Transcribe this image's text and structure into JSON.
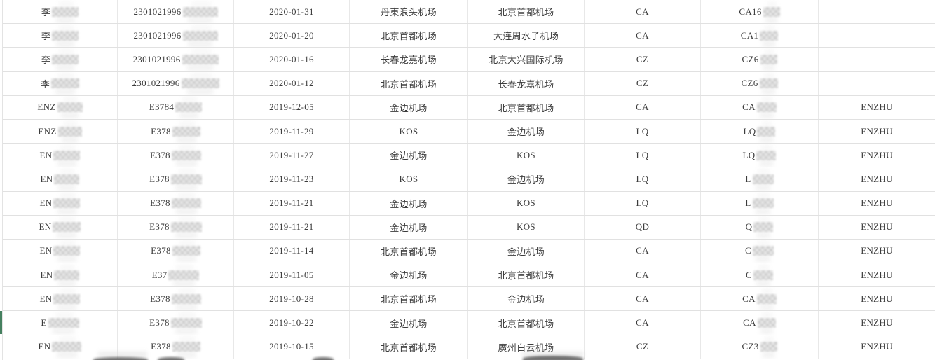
{
  "view": {
    "description": "Flight records spreadsheet (no header row visible)",
    "colors": {
      "grid_line": "#e1e1e1",
      "text": "#3c3c3c",
      "row_highlight_green": "#45805f",
      "redaction_gray": "#d0d0d0"
    }
  },
  "table": {
    "columns": [
      "passenger-name",
      "id-number",
      "flight-date",
      "departure-airport",
      "arrival-airport",
      "airline-code",
      "flight-number",
      "pinyin-name"
    ],
    "rows": [
      {
        "cells": [
          {
            "t": "李",
            "b": 38
          },
          {
            "t": "2301021996",
            "b": 50
          },
          {
            "t": "2020-01-31",
            "b": 0
          },
          {
            "t": "丹東浪头机场",
            "b": 0
          },
          {
            "t": "北京首都机场",
            "b": 0
          },
          {
            "t": "CA",
            "b": 0
          },
          {
            "t": "CA16",
            "b": 24
          },
          {
            "t": "",
            "b": 0
          }
        ]
      },
      {
        "cells": [
          {
            "t": "李",
            "b": 38
          },
          {
            "t": "2301021996",
            "b": 50
          },
          {
            "t": "2020-01-20",
            "b": 0
          },
          {
            "t": "北京首都机场",
            "b": 0
          },
          {
            "t": "大连周水子机场",
            "b": 0
          },
          {
            "t": "CA",
            "b": 0
          },
          {
            "t": "CA1",
            "b": 26
          },
          {
            "t": "",
            "b": 0
          }
        ]
      },
      {
        "cells": [
          {
            "t": "李",
            "b": 38
          },
          {
            "t": "2301021996",
            "b": 52
          },
          {
            "t": "2020-01-16",
            "b": 0
          },
          {
            "t": "长春龙嘉机场",
            "b": 0
          },
          {
            "t": "北京大兴国际机场",
            "b": 0
          },
          {
            "t": "CZ",
            "b": 0
          },
          {
            "t": "CZ6",
            "b": 24
          },
          {
            "t": "",
            "b": 0
          }
        ]
      },
      {
        "cells": [
          {
            "t": "李",
            "b": 40
          },
          {
            "t": "2301021996",
            "b": 54
          },
          {
            "t": "2020-01-12",
            "b": 0
          },
          {
            "t": "北京首都机场",
            "b": 0
          },
          {
            "t": "长春龙嘉机场",
            "b": 0
          },
          {
            "t": "CZ",
            "b": 0
          },
          {
            "t": "CZ6",
            "b": 26
          },
          {
            "t": "",
            "b": 0
          }
        ]
      },
      {
        "cells": [
          {
            "t": "ENZ",
            "b": 36
          },
          {
            "t": "E3784",
            "b": 38
          },
          {
            "t": "2019-12-05",
            "b": 0
          },
          {
            "t": "金边机场",
            "b": 0
          },
          {
            "t": "北京首都机场",
            "b": 0
          },
          {
            "t": "CA",
            "b": 0
          },
          {
            "t": "CA",
            "b": 28
          },
          {
            "t": "ENZHU",
            "b": 0
          }
        ]
      },
      {
        "cells": [
          {
            "t": "ENZ",
            "b": 34
          },
          {
            "t": "E378",
            "b": 40
          },
          {
            "t": "2019-11-29",
            "b": 0
          },
          {
            "t": "KOS",
            "b": 0
          },
          {
            "t": "金边机场",
            "b": 0
          },
          {
            "t": "LQ",
            "b": 0
          },
          {
            "t": "LQ",
            "b": 26
          },
          {
            "t": "ENZHU",
            "b": 0
          }
        ]
      },
      {
        "cells": [
          {
            "t": "EN",
            "b": 38
          },
          {
            "t": "E378",
            "b": 42
          },
          {
            "t": "2019-11-27",
            "b": 0
          },
          {
            "t": "金边机场",
            "b": 0
          },
          {
            "t": "KOS",
            "b": 0
          },
          {
            "t": "LQ",
            "b": 0
          },
          {
            "t": "LQ",
            "b": 28
          },
          {
            "t": "ENZHU",
            "b": 0
          }
        ]
      },
      {
        "cells": [
          {
            "t": "EN",
            "b": 36
          },
          {
            "t": "E378",
            "b": 44
          },
          {
            "t": "2019-11-23",
            "b": 0
          },
          {
            "t": "KOS",
            "b": 0
          },
          {
            "t": "金边机场",
            "b": 0
          },
          {
            "t": "LQ",
            "b": 0
          },
          {
            "t": "L",
            "b": 30
          },
          {
            "t": "ENZHU",
            "b": 0
          }
        ]
      },
      {
        "cells": [
          {
            "t": "EN",
            "b": 38
          },
          {
            "t": "E378",
            "b": 42
          },
          {
            "t": "2019-11-21",
            "b": 0
          },
          {
            "t": "金边机场",
            "b": 0
          },
          {
            "t": "KOS",
            "b": 0
          },
          {
            "t": "LQ",
            "b": 0
          },
          {
            "t": "L",
            "b": 30
          },
          {
            "t": "ENZHU",
            "b": 0
          }
        ]
      },
      {
        "cells": [
          {
            "t": "EN",
            "b": 40
          },
          {
            "t": "E378",
            "b": 44
          },
          {
            "t": "2019-11-21",
            "b": 0
          },
          {
            "t": "金边机场",
            "b": 0
          },
          {
            "t": "KOS",
            "b": 0
          },
          {
            "t": "QD",
            "b": 0
          },
          {
            "t": "Q",
            "b": 28
          },
          {
            "t": "ENZHU",
            "b": 0
          }
        ]
      },
      {
        "cells": [
          {
            "t": "EN",
            "b": 38
          },
          {
            "t": "E378",
            "b": 40
          },
          {
            "t": "2019-11-14",
            "b": 0
          },
          {
            "t": "北京首都机场",
            "b": 0
          },
          {
            "t": "金边机场",
            "b": 0
          },
          {
            "t": "CA",
            "b": 0
          },
          {
            "t": "C",
            "b": 30
          },
          {
            "t": "ENZHU",
            "b": 0
          }
        ]
      },
      {
        "cells": [
          {
            "t": "EN",
            "b": 36
          },
          {
            "t": "E37",
            "b": 44
          },
          {
            "t": "2019-11-05",
            "b": 0
          },
          {
            "t": "金边机场",
            "b": 0
          },
          {
            "t": "北京首都机场",
            "b": 0
          },
          {
            "t": "CA",
            "b": 0
          },
          {
            "t": "C",
            "b": 28
          },
          {
            "t": "ENZHU",
            "b": 0
          }
        ]
      },
      {
        "cells": [
          {
            "t": "EN",
            "b": 38
          },
          {
            "t": "E378",
            "b": 42
          },
          {
            "t": "2019-10-28",
            "b": 0
          },
          {
            "t": "北京首都机场",
            "b": 0
          },
          {
            "t": "金边机场",
            "b": 0
          },
          {
            "t": "CA",
            "b": 0
          },
          {
            "t": "CA",
            "b": 28
          },
          {
            "t": "ENZHU",
            "b": 0
          }
        ]
      },
      {
        "cells": [
          {
            "t": "E",
            "b": 44
          },
          {
            "t": "E378",
            "b": 44
          },
          {
            "t": "2019-10-22",
            "b": 0
          },
          {
            "t": "金边机场",
            "b": 0
          },
          {
            "t": "北京首都机场",
            "b": 0
          },
          {
            "t": "CA",
            "b": 0
          },
          {
            "t": "CA",
            "b": 26
          },
          {
            "t": "ENZHU",
            "b": 0
          }
        ]
      },
      {
        "cells": [
          {
            "t": "EN",
            "b": 42
          },
          {
            "t": "E378",
            "b": 40
          },
          {
            "t": "2019-10-15",
            "b": 0
          },
          {
            "t": "北京首都机场",
            "b": 0
          },
          {
            "t": "廣州白云机场",
            "b": 0
          },
          {
            "t": "CZ",
            "b": 0
          },
          {
            "t": "CZ3",
            "b": 24
          },
          {
            "t": "ENZHU",
            "b": 0
          }
        ]
      }
    ],
    "highlighted_row_index": 13,
    "partial_next_row_visible": true
  }
}
